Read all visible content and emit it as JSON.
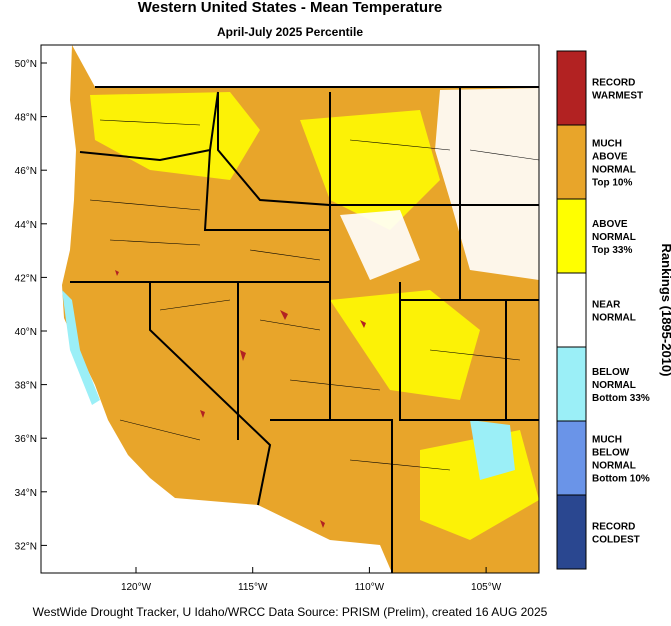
{
  "header": {
    "title": "Western United States - Mean Temperature",
    "subtitle": "April-July 2025 Percentile"
  },
  "axes": {
    "lat_labels": [
      "50°N",
      "48°N",
      "46°N",
      "44°N",
      "42°N",
      "40°N",
      "38°N",
      "36°N",
      "34°N",
      "32°N"
    ],
    "lon_labels": [
      "120°W",
      "115°W",
      "110°W",
      "105°W"
    ]
  },
  "legend": {
    "title": "Rankings (1895-2010)",
    "items": [
      {
        "lines": [
          "RECORD",
          "WARMEST"
        ],
        "color": "#b22222"
      },
      {
        "lines": [
          "MUCH",
          "ABOVE",
          "NORMAL",
          "Top 10%"
        ],
        "color": "#e8a52a"
      },
      {
        "lines": [
          "ABOVE",
          "NORMAL",
          "Top 33%"
        ],
        "color": "#ffff00"
      },
      {
        "lines": [
          "NEAR",
          "NORMAL"
        ],
        "color": "#ffffff"
      },
      {
        "lines": [
          "BELOW",
          "NORMAL",
          "Bottom 33%"
        ],
        "color": "#9beff7"
      },
      {
        "lines": [
          "MUCH",
          "BELOW",
          "NORMAL",
          "Bottom 10%"
        ],
        "color": "#6a94e8"
      },
      {
        "lines": [
          "RECORD",
          "COLDEST"
        ],
        "color": "#2a4790"
      }
    ]
  },
  "footer": "WestWide Drought Tracker, U Idaho/WRCC Data Source: PRISM (Prelim), created 16 AUG 2025"
}
